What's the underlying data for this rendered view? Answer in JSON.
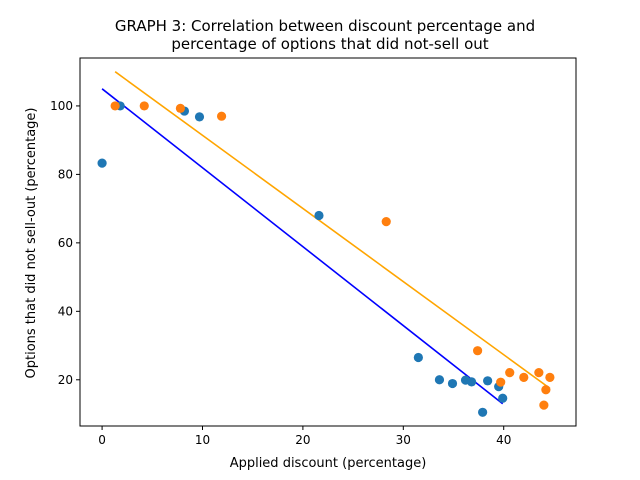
{
  "chart_data": {
    "type": "scatter",
    "title_lines": [
      "GRAPH 3: Correlation between discount percentage and",
      "percentage of options that did not-sell out"
    ],
    "xlabel": "Applied discount (percentage)",
    "ylabel": "Options that did not sell-out (percentage)",
    "xlim": [
      -2.2,
      47.2
    ],
    "ylim": [
      6.5,
      114
    ],
    "xticks": [
      0,
      10,
      20,
      30,
      40
    ],
    "yticks": [
      20,
      40,
      60,
      80,
      100
    ],
    "grid": false,
    "series": [
      {
        "color": "#1f77b4",
        "points": [
          {
            "x": 0.0,
            "y": 83.3
          },
          {
            "x": 1.8,
            "y": 100.0
          },
          {
            "x": 8.2,
            "y": 98.5
          },
          {
            "x": 9.7,
            "y": 96.8
          },
          {
            "x": 21.6,
            "y": 68.0
          },
          {
            "x": 31.5,
            "y": 26.5
          },
          {
            "x": 33.6,
            "y": 20.0
          },
          {
            "x": 34.9,
            "y": 18.9
          },
          {
            "x": 36.2,
            "y": 19.9
          },
          {
            "x": 36.8,
            "y": 19.4
          },
          {
            "x": 37.9,
            "y": 10.5
          },
          {
            "x": 38.4,
            "y": 19.7
          },
          {
            "x": 39.5,
            "y": 18.0
          },
          {
            "x": 39.9,
            "y": 14.6
          }
        ],
        "trend": {
          "x": [
            0.0,
            39.9
          ],
          "y": [
            105.0,
            13.0
          ],
          "color": "#0000ff"
        }
      },
      {
        "color": "#ff7f0e",
        "points": [
          {
            "x": 1.3,
            "y": 100.0
          },
          {
            "x": 4.2,
            "y": 100.0
          },
          {
            "x": 7.8,
            "y": 99.3
          },
          {
            "x": 11.9,
            "y": 97.0
          },
          {
            "x": 28.3,
            "y": 66.2
          },
          {
            "x": 37.4,
            "y": 28.5
          },
          {
            "x": 39.7,
            "y": 19.3
          },
          {
            "x": 40.6,
            "y": 22.1
          },
          {
            "x": 42.0,
            "y": 20.7
          },
          {
            "x": 43.5,
            "y": 22.1
          },
          {
            "x": 44.0,
            "y": 12.6
          },
          {
            "x": 44.2,
            "y": 17.1
          },
          {
            "x": 44.6,
            "y": 20.7
          }
        ],
        "trend": {
          "x": [
            1.3,
            44.6
          ],
          "y": [
            110.0,
            17.5
          ],
          "color": "#ffa500"
        }
      }
    ]
  }
}
